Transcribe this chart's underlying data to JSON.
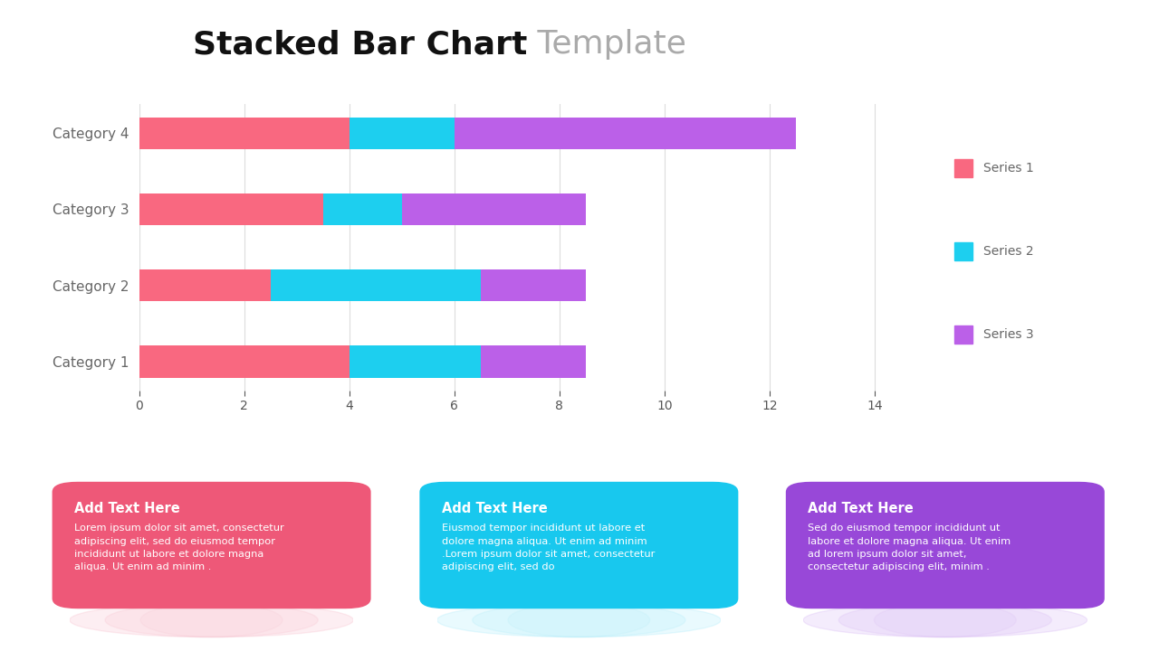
{
  "title_bold": "Stacked Bar Chart",
  "title_light": " Template",
  "categories": [
    "Category 1",
    "Category 2",
    "Category 3",
    "Category 4"
  ],
  "series": [
    {
      "name": "Series 1",
      "values": [
        4.0,
        2.5,
        3.5,
        4.0
      ],
      "color": "#F96880"
    },
    {
      "name": "Series 2",
      "values": [
        2.5,
        4.0,
        1.5,
        2.0
      ],
      "color": "#1DCFEF"
    },
    {
      "name": "Series 3",
      "values": [
        2.0,
        2.0,
        3.5,
        6.5
      ],
      "color": "#BB60E8"
    }
  ],
  "xlim": [
    0,
    15
  ],
  "xticks": [
    0,
    2,
    4,
    6,
    8,
    10,
    12,
    14
  ],
  "background_color": "#FFFFFF",
  "grid_color": "#DDDDDD",
  "title_fontsize": 26,
  "legend_fontsize": 10,
  "cards": [
    {
      "title": "Add Text Here",
      "body": "Lorem ipsum dolor sit amet, consectetur\nadipiscing elit, sed do eiusmod tempor\nincididunt ut labore et dolore magna\naliqua. Ut enim ad minim .",
      "bg_color": "#EE5878",
      "shadow_color": "#F590A8"
    },
    {
      "title": "Add Text Here",
      "body": "Eiusmod tempor incididunt ut labore et\ndolore magna aliqua. Ut enim ad minim\n.Lorem ipsum dolor sit amet, consectetur\nadipiscing elit, sed do",
      "bg_color": "#18C8EE",
      "shadow_color": "#70DEFA"
    },
    {
      "title": "Add Text Here",
      "body": "Sed do eiusmod tempor incididunt ut\nlabore et dolore magna aliqua. Ut enim\nad lorem ipsum dolor sit amet,\nconsectetur adipiscing elit, minim .",
      "bg_color": "#9848D8",
      "shadow_color": "#B880EE"
    }
  ]
}
